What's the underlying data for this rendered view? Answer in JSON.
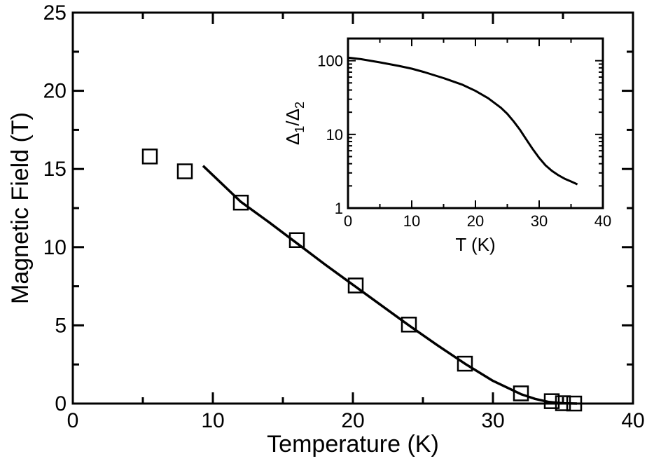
{
  "chart_data": [
    {
      "type": "scatter",
      "xlabel": "Temperature (K)",
      "ylabel": "Magnetic Field (T)",
      "xlim": [
        0,
        40
      ],
      "ylim": [
        0,
        25
      ],
      "x_ticks": [
        0,
        10,
        20,
        30,
        40
      ],
      "x_tick_labels": [
        "0",
        "10",
        "20",
        "30",
        "40"
      ],
      "y_ticks": [
        0,
        5,
        10,
        15,
        20,
        25
      ],
      "y_tick_labels": [
        "0",
        "5",
        "10",
        "15",
        "20",
        "25"
      ],
      "grid": false,
      "series": [
        {
          "kind": "markers",
          "marker": "open-square",
          "x": [
            5.5,
            8.0,
            12.0,
            16.0,
            20.2,
            24.0,
            28.0,
            32.0,
            34.2,
            35.0,
            35.8
          ],
          "y": [
            15.8,
            14.85,
            12.85,
            10.45,
            7.55,
            5.05,
            2.55,
            0.65,
            0.15,
            0.02,
            0.0
          ]
        },
        {
          "kind": "line",
          "x": [
            9.3,
            12,
            14,
            16,
            18,
            20,
            22,
            24,
            26,
            28,
            30,
            32,
            33,
            34,
            35,
            36
          ],
          "y": [
            15.2,
            12.9,
            11.6,
            10.25,
            8.9,
            7.6,
            6.3,
            5.0,
            3.75,
            2.55,
            1.45,
            0.6,
            0.3,
            0.1,
            0.02,
            0.0
          ]
        }
      ]
    },
    {
      "type": "line",
      "inset": true,
      "xlabel": "T (K)",
      "ylabel": "Δ1/Δ2",
      "ylabel_parts": {
        "main": "Δ",
        "sub1": "1",
        "slash": "/",
        "sub2": "2"
      },
      "xlim": [
        0,
        40
      ],
      "ylim": [
        1,
        200
      ],
      "y_scale": "log",
      "x_ticks": [
        0,
        10,
        20,
        30,
        40
      ],
      "x_tick_labels": [
        "0",
        "10",
        "20",
        "30",
        "40"
      ],
      "y_ticks": [
        1,
        10,
        100
      ],
      "y_tick_labels": [
        "1",
        "10",
        "100"
      ],
      "grid": false,
      "series": [
        {
          "x": [
            0,
            2,
            5,
            8,
            10,
            12,
            15,
            18,
            20,
            22,
            24,
            25,
            26,
            27,
            28,
            29,
            30,
            31,
            32,
            33,
            34,
            35,
            36
          ],
          "y": [
            110,
            105,
            95,
            85,
            78,
            70,
            58,
            47,
            39,
            31,
            23,
            19,
            15,
            11.5,
            8.5,
            6.3,
            4.8,
            3.8,
            3.2,
            2.8,
            2.5,
            2.3,
            2.1
          ]
        }
      ]
    }
  ]
}
